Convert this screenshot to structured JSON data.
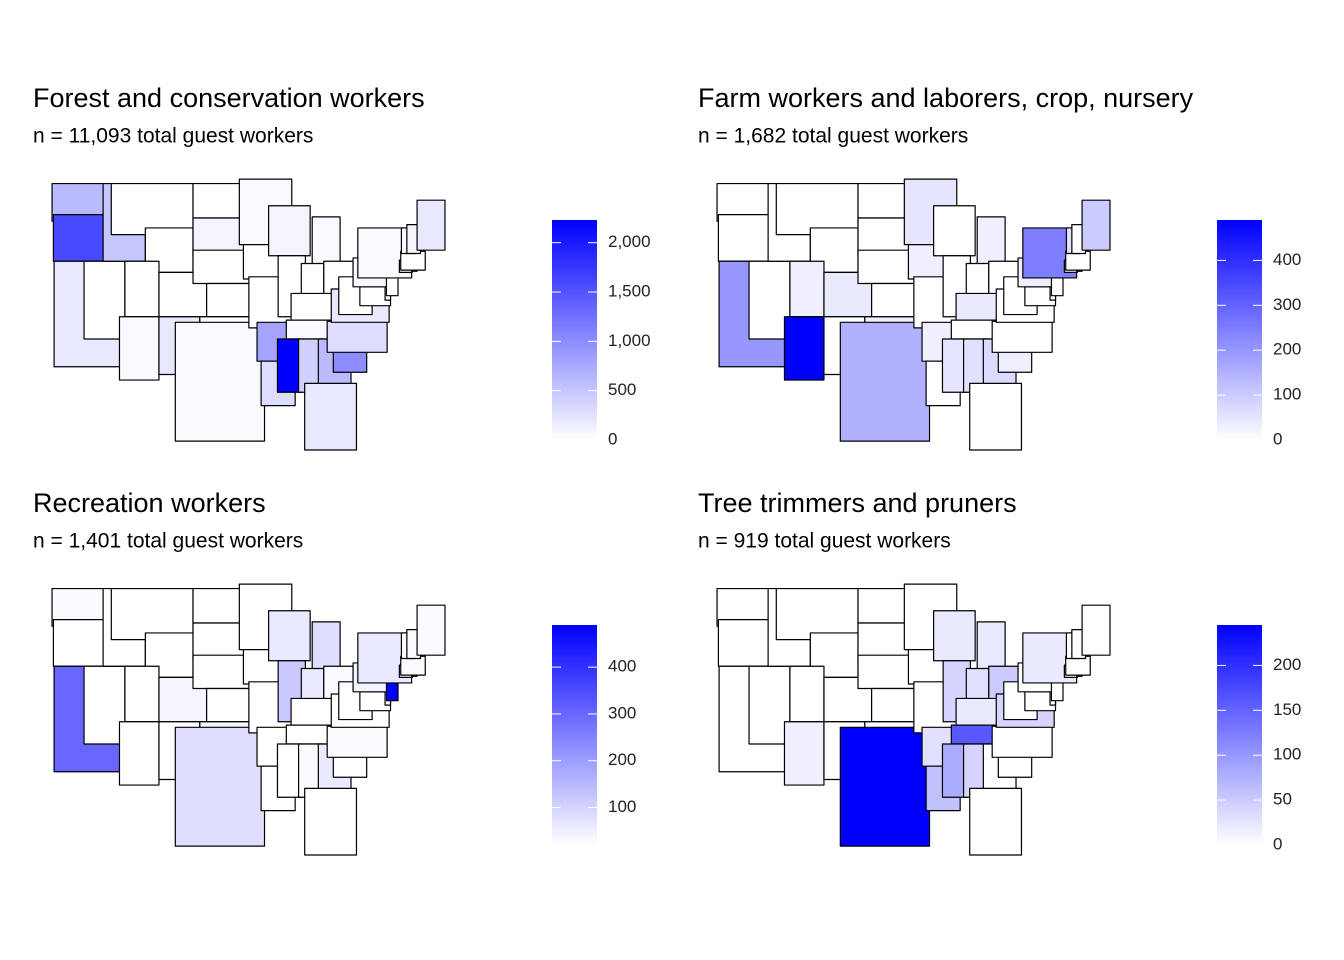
{
  "chart_data": [
    {
      "type": "choropleth",
      "title": "Forest and conservation workers",
      "subtitle": "n = 11,093 total guest workers",
      "low_color": "#ffffff",
      "high_color": "#0000ff",
      "values": [
        600,
        1600,
        200,
        null,
        500,
        null,
        null,
        null,
        50,
        null,
        200,
        null,
        100,
        null,
        null,
        null,
        50,
        50,
        null,
        null,
        800,
        300,
        100,
        null,
        50,
        null,
        null,
        null,
        50,
        2230,
        400,
        600,
        200,
        1000,
        300,
        200,
        null,
        null,
        null,
        50,
        null,
        50,
        null,
        null,
        null,
        50,
        100,
        200
      ],
      "ylim": [
        0,
        2230
      ],
      "yticks": [
        0,
        500,
        {
          "value": 1000,
          "label": "1,000"
        },
        {
          "value": 1500,
          "label": "1,500"
        },
        {
          "value": 2000,
          "label": "2,000"
        }
      ]
    },
    {
      "type": "choropleth",
      "title": "Farm workers and laborers, crop, nursery",
      "subtitle": "n = 1,682 total guest workers",
      "low_color": "#ffffff",
      "high_color": "#0000ff",
      "values": [
        null,
        null,
        200,
        null,
        null,
        null,
        null,
        30,
        490,
        40,
        null,
        null,
        null,
        null,
        null,
        30,
        150,
        50,
        30,
        null,
        30,
        null,
        null,
        null,
        30,
        null,
        null,
        40,
        null,
        50,
        60,
        70,
        null,
        30,
        null,
        null,
        null,
        null,
        null,
        30,
        null,
        250,
        null,
        null,
        null,
        60,
        null,
        100
      ],
      "ylim": [
        0,
        490
      ],
      "yticks": [
        0,
        100,
        200,
        300,
        400
      ]
    },
    {
      "type": "choropleth",
      "title": "Recreation workers",
      "subtitle": "n = 1,401 total guest workers",
      "low_color": "#ffffff",
      "high_color": "#0000ff",
      "values": [
        30,
        null,
        300,
        null,
        null,
        null,
        null,
        null,
        null,
        40,
        null,
        null,
        null,
        null,
        null,
        40,
        80,
        null,
        null,
        null,
        null,
        null,
        60,
        120,
        80,
        60,
        30,
        null,
        null,
        null,
        30,
        60,
        null,
        null,
        30,
        null,
        null,
        null,
        null,
        40,
        490,
        60,
        null,
        null,
        30,
        30,
        30,
        30
      ],
      "ylim": [
        20,
        490
      ],
      "yticks": [
        100,
        200,
        300,
        400
      ]
    },
    {
      "type": "choropleth",
      "title": "Tree trimmers and pruners",
      "subtitle": "n = 919 total guest workers",
      "low_color": "#ffffff",
      "high_color": "#0000ff",
      "values": [
        null,
        null,
        null,
        null,
        null,
        null,
        null,
        null,
        15,
        null,
        null,
        null,
        null,
        null,
        null,
        null,
        245,
        null,
        null,
        null,
        30,
        60,
        20,
        40,
        20,
        30,
        50,
        20,
        160,
        80,
        40,
        null,
        null,
        null,
        null,
        40,
        null,
        null,
        null,
        null,
        null,
        20,
        null,
        null,
        null,
        null,
        null,
        null
      ],
      "ylim": [
        0,
        245
      ],
      "yticks": [
        0,
        50,
        100,
        150,
        200
      ]
    }
  ]
}
